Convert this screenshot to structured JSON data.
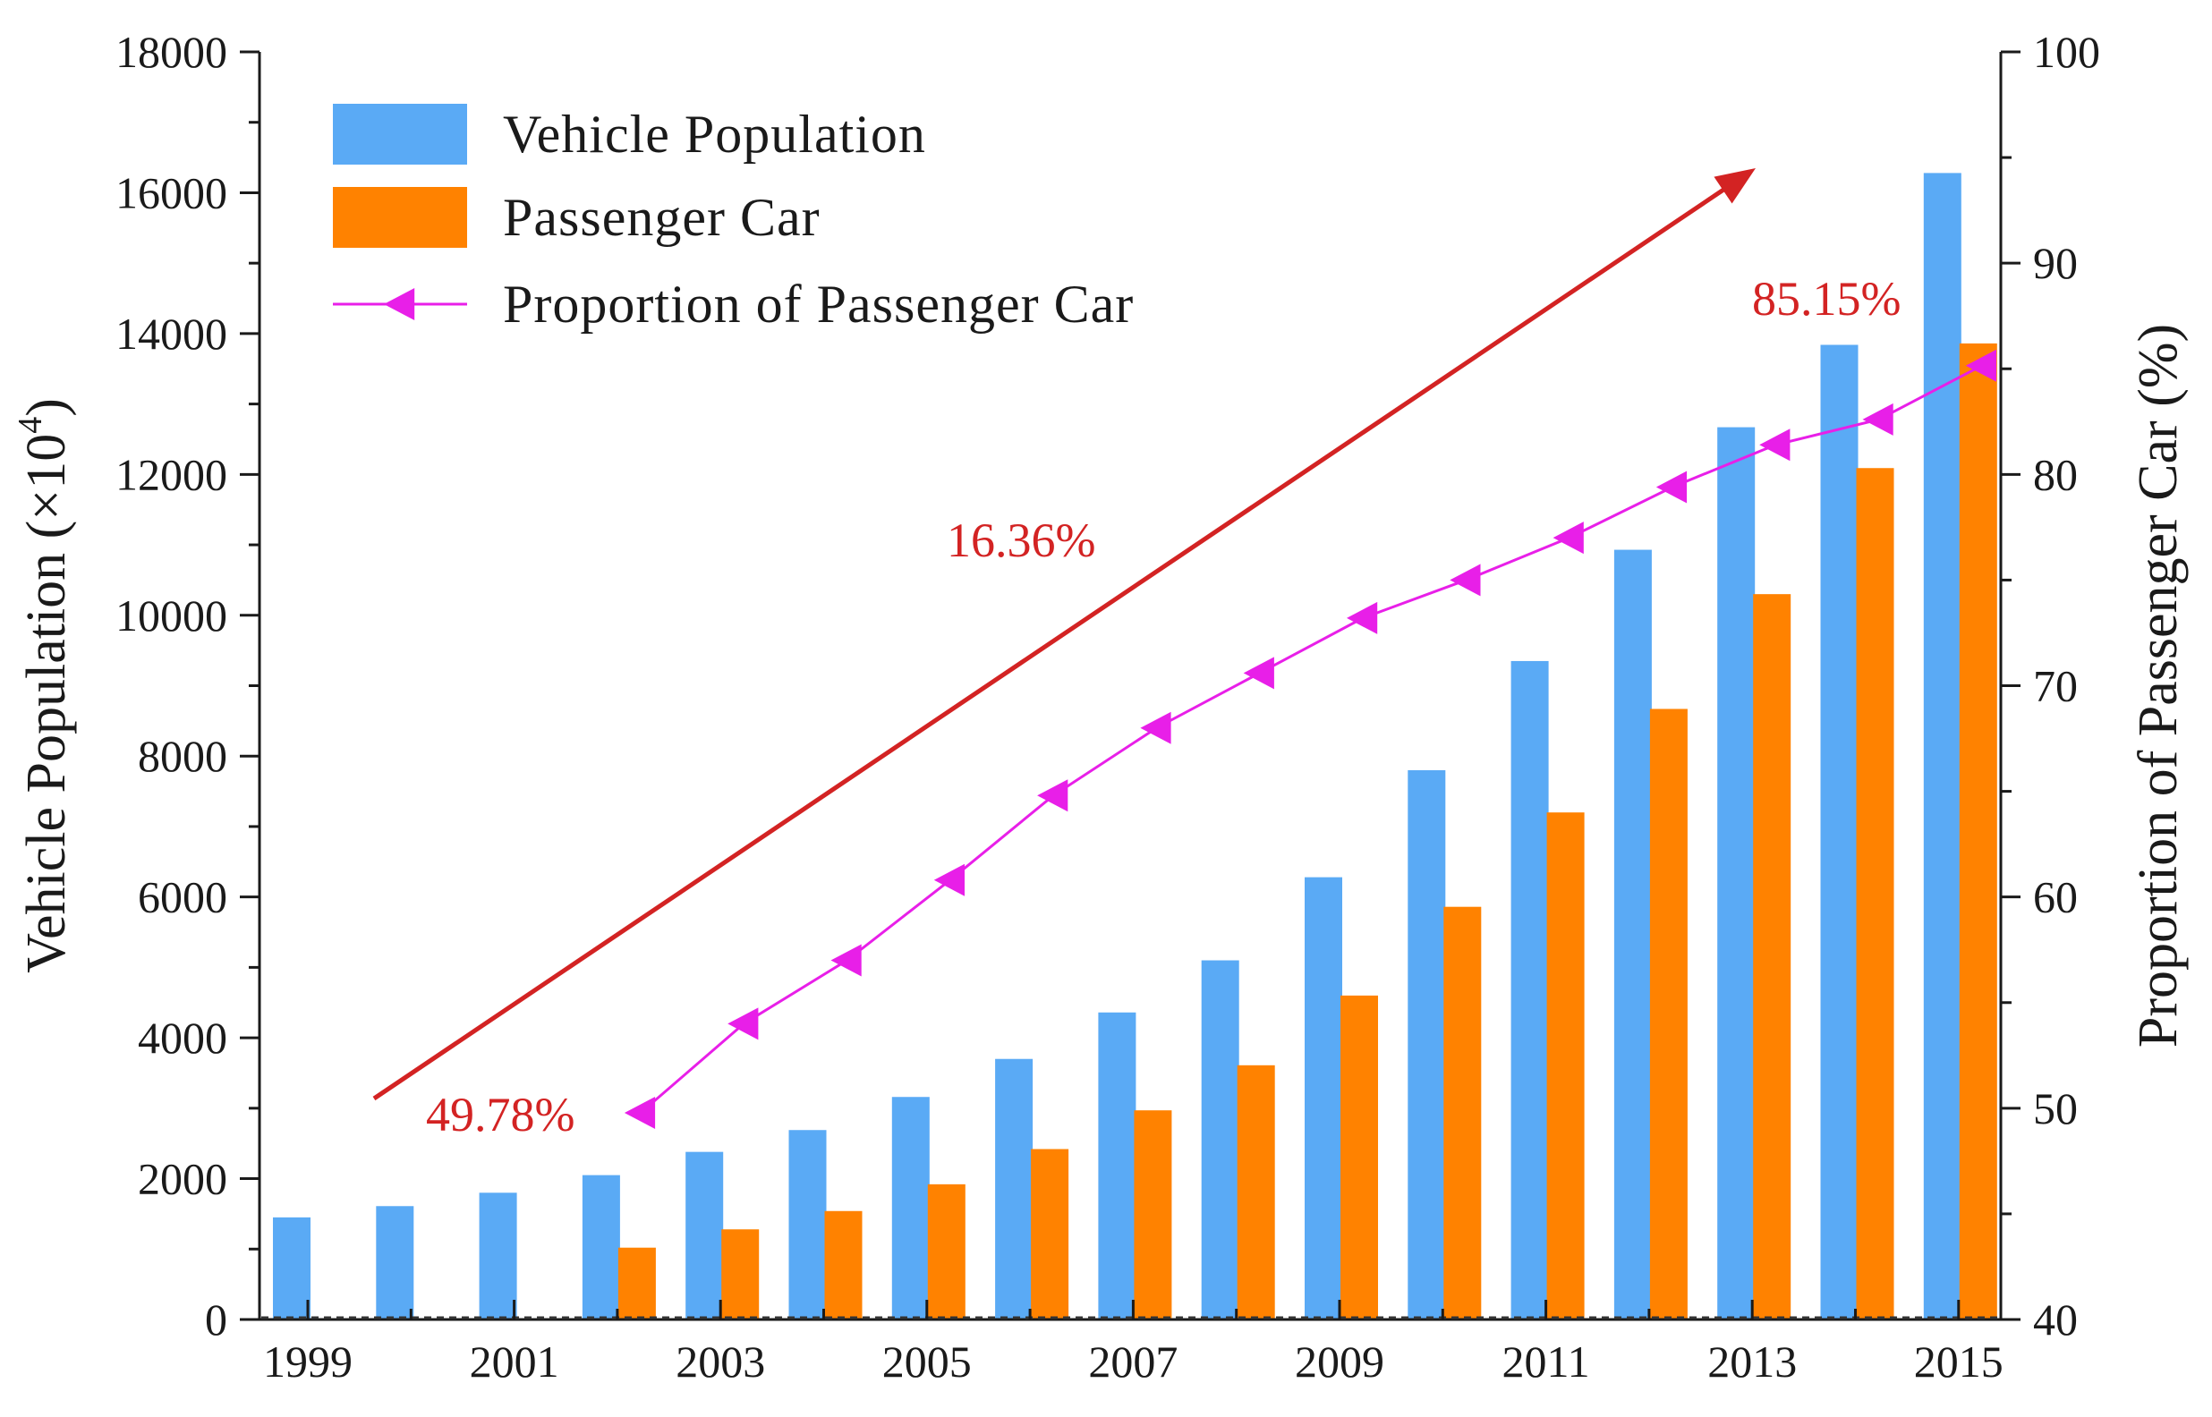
{
  "chart_data": {
    "type": "bar",
    "categories": [
      "1999",
      "2000",
      "2001",
      "2002",
      "2003",
      "2004",
      "2005",
      "2006",
      "2007",
      "2008",
      "2009",
      "2010",
      "2011",
      "2012",
      "2013",
      "2014",
      "2015"
    ],
    "x_tick_labels": [
      "1999",
      "2001",
      "2003",
      "2005",
      "2007",
      "2009",
      "2011",
      "2013",
      "2015"
    ],
    "series": [
      {
        "name": "Vehicle Population",
        "type": "bar",
        "axis": "left",
        "values": [
          1450,
          1610,
          1800,
          2050,
          2380,
          2690,
          3160,
          3700,
          4360,
          5100,
          6280,
          7800,
          9350,
          10930,
          12670,
          13840,
          16280
        ]
      },
      {
        "name": "Passenger Car",
        "type": "bar",
        "axis": "left",
        "values": [
          null,
          null,
          null,
          1020,
          1280,
          1540,
          1920,
          2420,
          2970,
          3610,
          4600,
          5860,
          7200,
          8670,
          10300,
          12090,
          13860
        ]
      },
      {
        "name": "Proportion of Passenger Car",
        "type": "line",
        "axis": "right",
        "values": [
          null,
          null,
          null,
          49.78,
          54.0,
          57.0,
          60.8,
          64.8,
          68.0,
          70.6,
          73.2,
          75.0,
          77.0,
          79.4,
          81.4,
          82.6,
          85.15
        ]
      }
    ],
    "y_left": {
      "label": "Vehicle Population (×10",
      "label_sup": "4",
      "label_close": ")",
      "range": [
        0,
        18000
      ],
      "ticks": [
        "0",
        "2000",
        "4000",
        "6000",
        "8000",
        "10000",
        "12000",
        "14000",
        "16000",
        "18000"
      ]
    },
    "y_right": {
      "label": "Proportion of Passenger Car (%)",
      "range": [
        40,
        100
      ],
      "ticks": [
        "40",
        "50",
        "60",
        "70",
        "80",
        "90",
        "100"
      ]
    },
    "legend": {
      "placement": "top-left",
      "entries": [
        "Vehicle Population",
        "Passenger Car",
        "Proportion of Passenger Car"
      ]
    },
    "annotations": {
      "start": "49.78%",
      "growth": "16.36%",
      "end": "85.15%"
    },
    "colors": {
      "vehicle": "#5aaaf5",
      "passenger": "#ff8200",
      "proportion": "#e81fe8",
      "trend": "#d32323",
      "annotation": "#d32323",
      "axis": "#1a1a1a"
    }
  }
}
